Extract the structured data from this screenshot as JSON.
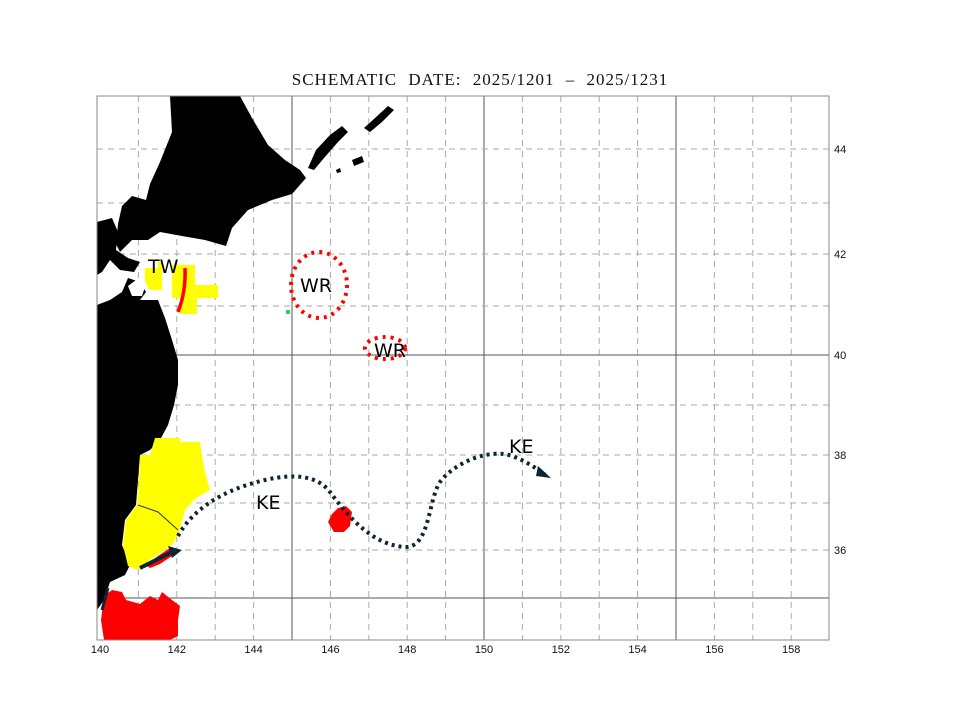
{
  "title": "SCHEMATIC   DATE:  2025/1201  –   2025/1231",
  "map": {
    "lon_range": [
      140,
      159
    ],
    "lat_range": [
      34.3,
      45.2
    ],
    "lon_ticks": [
      "140",
      "142",
      "144",
      "146",
      "148",
      "150",
      "152",
      "154",
      "156",
      "158"
    ],
    "lat_ticks": [
      "44",
      "42",
      "40",
      "38",
      "36"
    ],
    "labels": {
      "tw": "TW",
      "wr1": "WR",
      "wr2": "WR",
      "ke1": "KE",
      "ke2": "KE"
    },
    "colors": {
      "land": "#000000",
      "warm_water": "#ff0000",
      "cold_water": "#ffff00",
      "current": "#0d2533",
      "green_mark": "#33cc66",
      "grid": "#aaaaaa"
    }
  }
}
